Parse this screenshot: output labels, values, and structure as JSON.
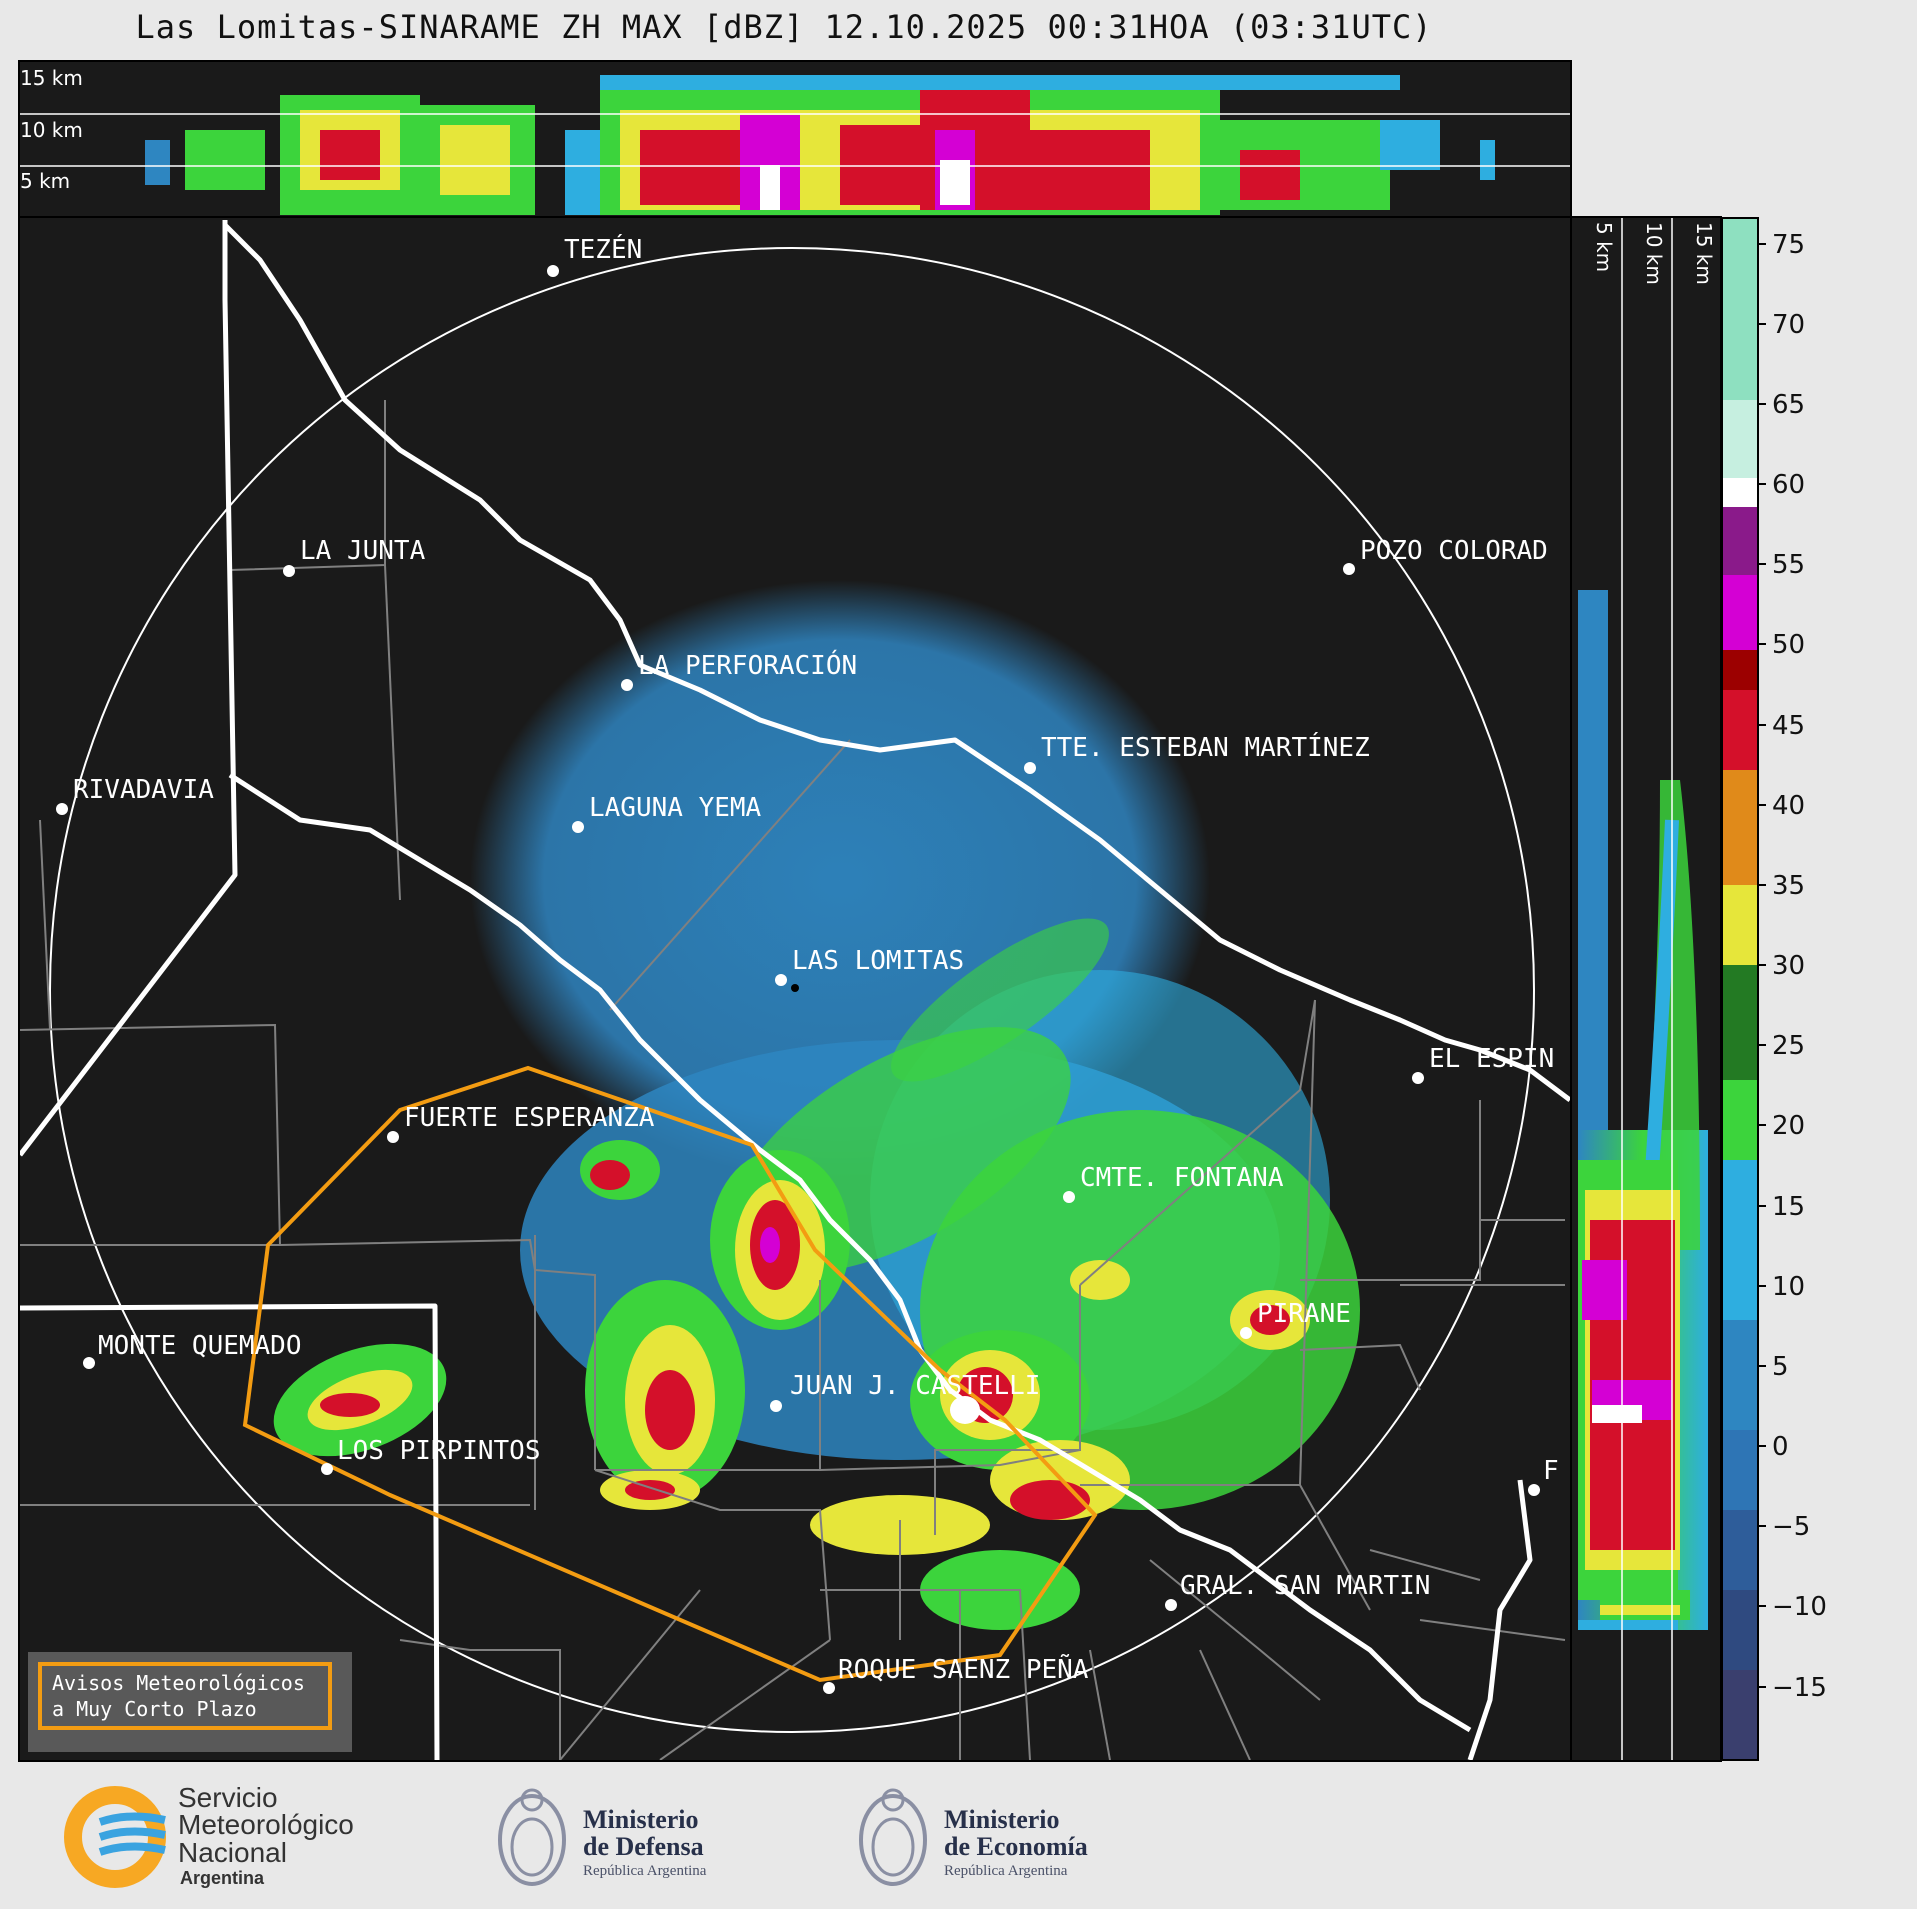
{
  "title": "Las Lomitas-SINARAME ZH MAX [dBZ] 12.10.2025 00:31HOA (03:31UTC)",
  "top_panel": {
    "height_labels": [
      "15 km",
      "10 km",
      "5 km"
    ]
  },
  "side_panel": {
    "height_labels": [
      "5 km",
      "10 km",
      "15 km"
    ]
  },
  "colorbar": {
    "ticks": [
      "75",
      "70",
      "65",
      "60",
      "55",
      "50",
      "45",
      "40",
      "35",
      "30",
      "25",
      "20",
      "15",
      "10",
      "5",
      "0",
      "−5",
      "−10",
      "−15"
    ],
    "colors": {
      "low": "#3a3f6e",
      "blue": "#2e86c1",
      "light_blue": "#2eaee0",
      "green": "#3cd43c",
      "dark_green": "#237a23",
      "yellow": "#e6e63a",
      "orange": "#e08a1a",
      "red": "#d4102a",
      "dark_red": "#9c0000",
      "magenta": "#d400d4",
      "purple": "#8a1a8a",
      "white": "#ffffff",
      "mint": "#8ee0c0"
    }
  },
  "cities": [
    {
      "name": "TEZÉN"
    },
    {
      "name": "LA JUNTA"
    },
    {
      "name": "POZO COLORAD"
    },
    {
      "name": "LA PERFORACIÓN"
    },
    {
      "name": "TTE. ESTEBAN MARTÍNEZ"
    },
    {
      "name": "RIVADAVIA"
    },
    {
      "name": "LAGUNA YEMA"
    },
    {
      "name": "LAS LOMITAS"
    },
    {
      "name": "EL ESPIN"
    },
    {
      "name": "FUERTE ESPERANZA"
    },
    {
      "name": "CMTE. FONTANA"
    },
    {
      "name": "PIRANE"
    },
    {
      "name": "MONTE QUEMADO"
    },
    {
      "name": "JUAN J. CASTELLI"
    },
    {
      "name": "LOS PIRPINTOS"
    },
    {
      "name": "F"
    },
    {
      "name": "GRAL. SAN MARTIN"
    },
    {
      "name": "ROQUE SAENZ PEÑA"
    }
  ],
  "legend": {
    "line1": "Avisos Meteorológicos",
    "line2": "a Muy Corto Plazo",
    "border_color": "#f39c12"
  },
  "footer": {
    "smn": {
      "line1": "Servicio",
      "line2": "Meteorológico",
      "line3": "Nacional",
      "line4": "Argentina"
    },
    "defensa": {
      "line1": "Ministerio",
      "line2": "de Defensa",
      "line3": "República Argentina"
    },
    "economia": {
      "line1": "Ministerio",
      "line2": "de Economía",
      "line3": "República Argentina"
    }
  }
}
